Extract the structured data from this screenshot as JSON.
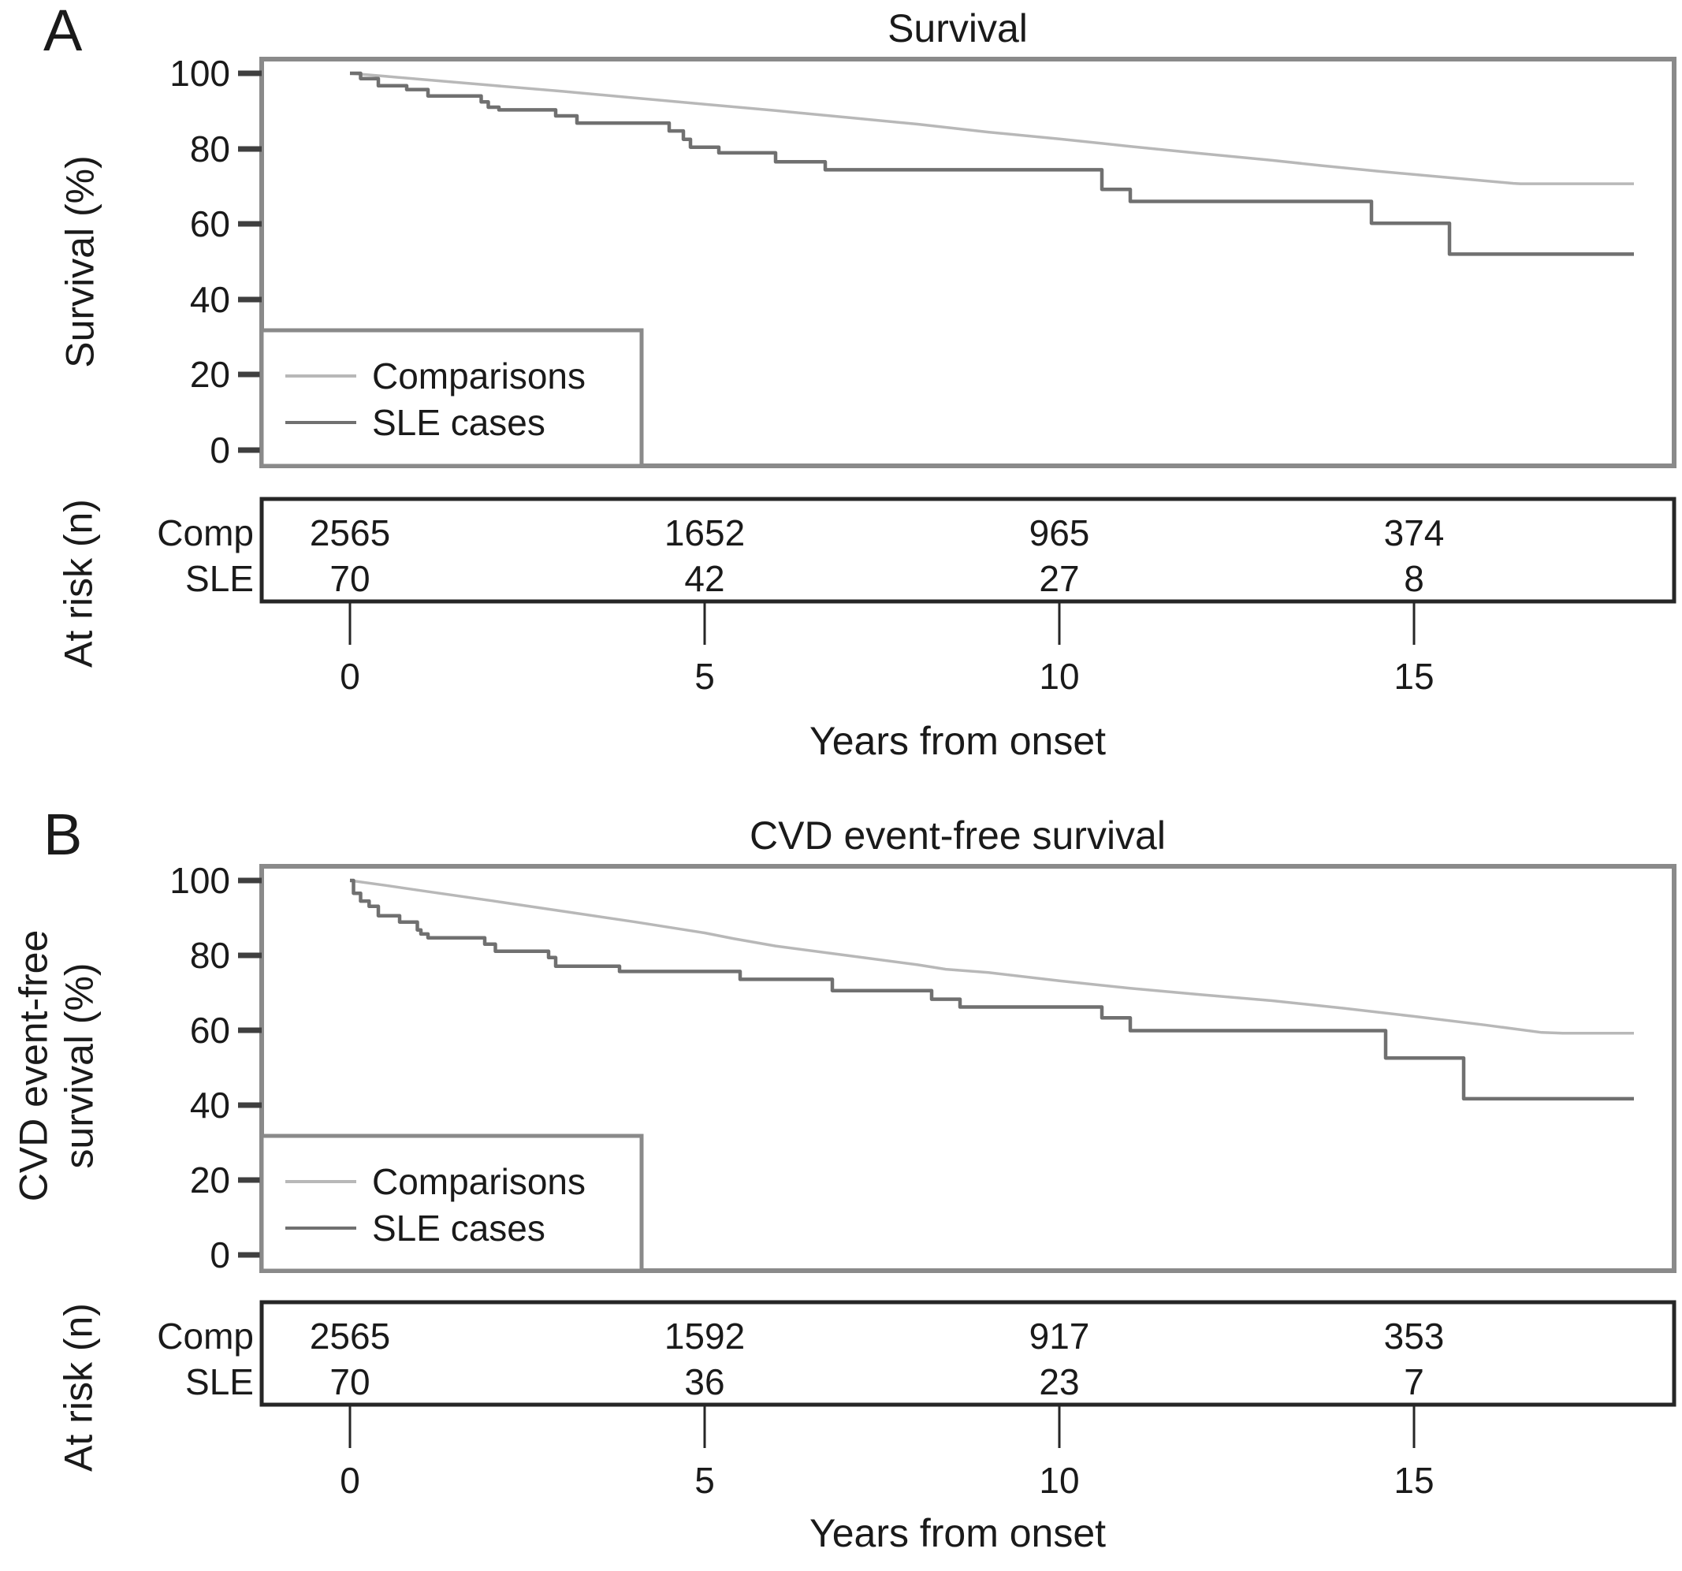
{
  "chart_data": [
    {
      "type": "line",
      "variant": "kaplan-meier-step-curves",
      "panel_label": "A",
      "title": "Survival",
      "xlabel": "Years from onset",
      "ylabel": "Survival (%)",
      "ylabel_lines": [
        "Survival (%)"
      ],
      "xlim": [
        -1.3,
        18.7
      ],
      "ylim": [
        0,
        100
      ],
      "x_ticks": [
        "0",
        "5",
        "10",
        "15"
      ],
      "y_ticks": [
        "100",
        "80",
        "60",
        "40",
        "20",
        "0"
      ],
      "grid": false,
      "legend_position": "lower-left",
      "legend": [
        {
          "label": "Comparisons",
          "color": "#b8b8b8"
        },
        {
          "label": "SLE cases",
          "color": "#707070"
        }
      ],
      "series": [
        {
          "name": "Comparisons",
          "color": "#b8b8b8",
          "step": false,
          "points": [
            [
              0,
              100
            ],
            [
              0.5,
              99.2
            ],
            [
              1,
              98.4
            ],
            [
              2,
              96.8
            ],
            [
              3,
              95.2
            ],
            [
              4,
              93.5
            ],
            [
              5,
              91.8
            ],
            [
              6,
              90.1
            ],
            [
              7,
              88.3
            ],
            [
              8,
              86.5
            ],
            [
              9,
              84.4
            ],
            [
              10,
              82.6
            ],
            [
              11,
              80.6
            ],
            [
              12,
              78.7
            ],
            [
              13,
              76.9
            ],
            [
              13.7,
              75.5
            ],
            [
              14.5,
              74.0
            ],
            [
              15.5,
              72.3
            ],
            [
              16.4,
              70.8
            ],
            [
              16.5,
              70.7
            ],
            [
              18.1,
              70.7
            ]
          ]
        },
        {
          "name": "SLE cases",
          "color": "#707070",
          "step": true,
          "points": [
            [
              0,
              100
            ],
            [
              0.15,
              98.6
            ],
            [
              0.4,
              96.7
            ],
            [
              0.8,
              95.7
            ],
            [
              1.1,
              94.0
            ],
            [
              1.85,
              92.4
            ],
            [
              1.95,
              91.0
            ],
            [
              2.1,
              90.3
            ],
            [
              2.9,
              88.7
            ],
            [
              3.2,
              86.8
            ],
            [
              4.5,
              84.7
            ],
            [
              4.7,
              82.5
            ],
            [
              4.8,
              80.4
            ],
            [
              5.2,
              78.9
            ],
            [
              6.0,
              76.5
            ],
            [
              6.7,
              74.4
            ],
            [
              10.6,
              69.2
            ],
            [
              11.0,
              66.0
            ],
            [
              14.4,
              60.2
            ],
            [
              15.5,
              52.0
            ],
            [
              18.1,
              52.0
            ]
          ]
        }
      ],
      "at_risk": {
        "label": "At risk (n)",
        "times": [
          0,
          5,
          10,
          15
        ],
        "rows": [
          {
            "label": "Comp",
            "values": [
              "2565",
              "1652",
              "965",
              "374"
            ]
          },
          {
            "label": "SLE",
            "values": [
              "70",
              "42",
              "27",
              "8"
            ]
          }
        ]
      }
    },
    {
      "type": "line",
      "variant": "kaplan-meier-step-curves",
      "panel_label": "B",
      "title": "CVD event-free survival",
      "xlabel": "Years from onset",
      "ylabel": "CVD event-free survival (%)",
      "ylabel_lines": [
        "CVD event-free",
        "survival (%)"
      ],
      "xlim": [
        -1.3,
        18.7
      ],
      "ylim": [
        0,
        100
      ],
      "x_ticks": [
        "0",
        "5",
        "10",
        "15"
      ],
      "y_ticks": [
        "100",
        "80",
        "60",
        "40",
        "20",
        "0"
      ],
      "grid": false,
      "legend_position": "lower-left",
      "legend": [
        {
          "label": "Comparisons",
          "color": "#b8b8b8"
        },
        {
          "label": "SLE cases",
          "color": "#707070"
        }
      ],
      "series": [
        {
          "name": "Comparisons",
          "color": "#b8b8b8",
          "step": false,
          "points": [
            [
              0,
              100
            ],
            [
              0.5,
              98.7
            ],
            [
              1,
              97.3
            ],
            [
              2,
              94.6
            ],
            [
              3,
              91.8
            ],
            [
              4,
              89.0
            ],
            [
              5,
              86.0
            ],
            [
              5.4,
              84.5
            ],
            [
              6,
              82.5
            ],
            [
              7,
              80.0
            ],
            [
              8,
              77.5
            ],
            [
              8.4,
              76.3
            ],
            [
              9,
              75.4
            ],
            [
              10,
              73.2
            ],
            [
              11,
              71.2
            ],
            [
              12,
              69.5
            ],
            [
              13,
              67.9
            ],
            [
              14,
              65.9
            ],
            [
              15,
              63.7
            ],
            [
              16,
              61.4
            ],
            [
              16.8,
              59.4
            ],
            [
              17.1,
              59.2
            ],
            [
              18.1,
              59.2
            ]
          ]
        },
        {
          "name": "SLE cases",
          "color": "#707070",
          "step": true,
          "points": [
            [
              0,
              100
            ],
            [
              0.05,
              96.6
            ],
            [
              0.15,
              94.5
            ],
            [
              0.27,
              93.1
            ],
            [
              0.4,
              90.6
            ],
            [
              0.7,
              88.9
            ],
            [
              0.95,
              86.8
            ],
            [
              1.0,
              85.7
            ],
            [
              1.1,
              84.7
            ],
            [
              1.9,
              83.0
            ],
            [
              2.05,
              81.1
            ],
            [
              2.8,
              79.4
            ],
            [
              2.9,
              77.1
            ],
            [
              3.8,
              75.7
            ],
            [
              5.5,
              73.6
            ],
            [
              6.8,
              70.6
            ],
            [
              8.2,
              68.3
            ],
            [
              8.6,
              66.2
            ],
            [
              10.6,
              63.3
            ],
            [
              11.0,
              59.9
            ],
            [
              14.6,
              52.6
            ],
            [
              15.7,
              41.7
            ],
            [
              18.1,
              41.7
            ]
          ]
        }
      ],
      "at_risk": {
        "label": "At risk (n)",
        "times": [
          0,
          5,
          10,
          15
        ],
        "rows": [
          {
            "label": "Comp",
            "values": [
              "2565",
              "1592",
              "917",
              "353"
            ]
          },
          {
            "label": "SLE",
            "values": [
              "70",
              "36",
              "23",
              "7"
            ]
          }
        ]
      }
    }
  ],
  "colors": {
    "comparisons_line": "#b8b8b8",
    "sle_line": "#707070",
    "plot_frame": "#8a8a8a",
    "table_border": "#262626",
    "text": "#1a1a1a"
  }
}
